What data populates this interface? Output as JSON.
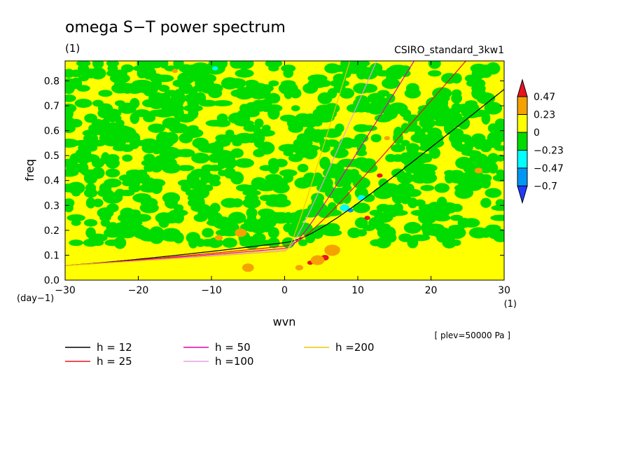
{
  "chart_data": {
    "type": "heatmap",
    "title": "omega S−T power spectrum",
    "units_label": "(1)",
    "subtitle_right": "CSIRO_standard_3kw1",
    "xlabel": "wvn",
    "ylabel": "freq",
    "x_unit_label": "(1)",
    "y_unit_label": "(day−1)",
    "footnote": "[ plev=50000 Pa ]",
    "xlim": [
      -30,
      30
    ],
    "ylim": [
      0,
      0.88
    ],
    "x_ticks": [
      {
        "value": -30,
        "label": "−30"
      },
      {
        "value": -20,
        "label": "−20"
      },
      {
        "value": -10,
        "label": "−10"
      },
      {
        "value": 0,
        "label": "0"
      },
      {
        "value": 10,
        "label": "10"
      },
      {
        "value": 20,
        "label": "20"
      },
      {
        "value": 30,
        "label": "30"
      }
    ],
    "y_ticks": [
      {
        "value": 0.0,
        "label": "0.0"
      },
      {
        "value": 0.1,
        "label": "0.1"
      },
      {
        "value": 0.2,
        "label": "0.2"
      },
      {
        "value": 0.3,
        "label": "0.3"
      },
      {
        "value": 0.4,
        "label": "0.4"
      },
      {
        "value": 0.5,
        "label": "0.5"
      },
      {
        "value": 0.6,
        "label": "0.6"
      },
      {
        "value": 0.7,
        "label": "0.7"
      },
      {
        "value": 0.8,
        "label": "0.8"
      }
    ],
    "colorbar": {
      "levels": [
        {
          "label": "0.47",
          "value": 0.47
        },
        {
          "label": "0.23",
          "value": 0.23
        },
        {
          "label": "0",
          "value": 0
        },
        {
          "label": "−0.23",
          "value": -0.23
        },
        {
          "label": "−0.47",
          "value": -0.47
        },
        {
          "label": "−0.7",
          "value": -0.7
        }
      ],
      "colors": [
        "#e8141e",
        "#f5a200",
        "#ffff00",
        "#00dc00",
        "#00ffff",
        "#0096f5",
        "#1e3cff"
      ]
    },
    "background_field": "noisy contour field mostly 0 to 0.23 (yellow) with scattered −0.23 to 0 (green) patches, weak negative anomalies near (9,0.28), positive anomalies along dispersion curves near wvn 5–13",
    "dispersion_curves": [
      {
        "name": "h = 12",
        "h": 12,
        "color": "#000000"
      },
      {
        "name": "h = 25",
        "h": 25,
        "color": "#e8141e"
      },
      {
        "name": "h = 50",
        "h": 50,
        "color": "#e600aa"
      },
      {
        "name": "h =100",
        "h": 100,
        "color": "#e6a0e6"
      },
      {
        "name": "h =200",
        "h": 200,
        "color": "#f0c800"
      }
    ]
  }
}
